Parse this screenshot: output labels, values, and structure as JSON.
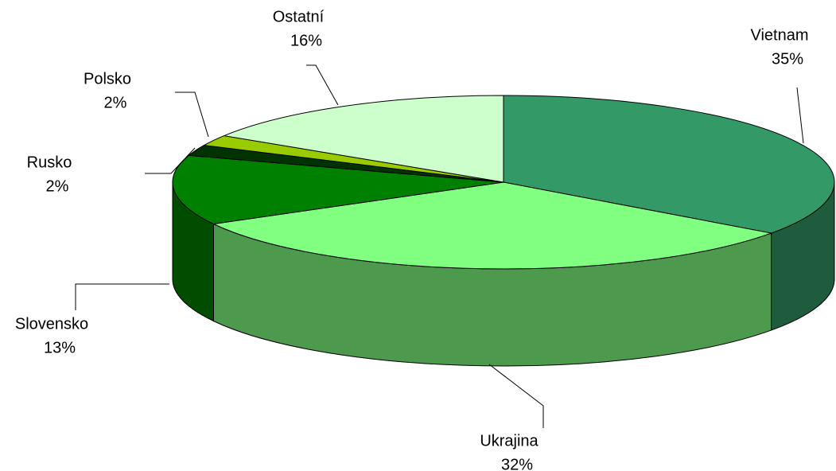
{
  "chart_data": {
    "type": "pie3d",
    "categories": [
      "Vietnam",
      "Ukrajina",
      "Slovensko",
      "Rusko",
      "Polsko",
      "Ostatní"
    ],
    "values": [
      35,
      32,
      13,
      2,
      2,
      16
    ],
    "value_labels": [
      "35%",
      "32%",
      "13%",
      "2%",
      "2%",
      "16%"
    ],
    "colors": [
      "#339966",
      "#80ff80",
      "#008000",
      "#003300",
      "#99cc00",
      "#ccffcc"
    ]
  }
}
